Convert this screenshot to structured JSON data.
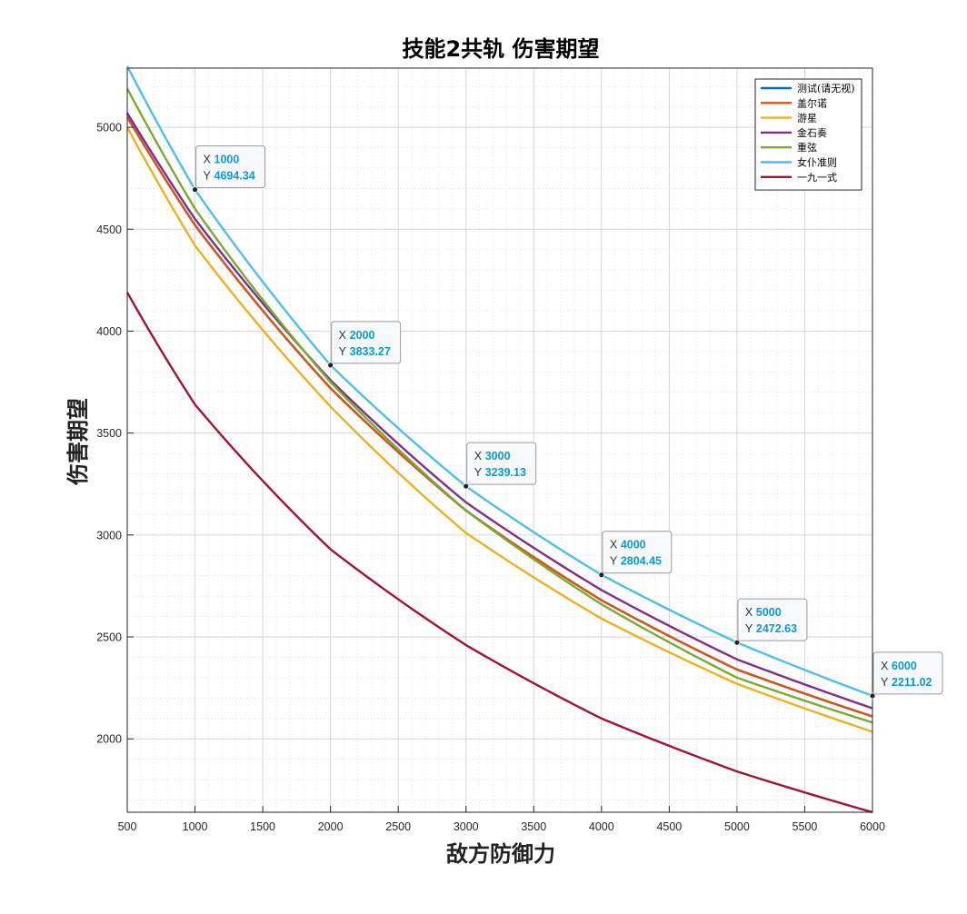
{
  "chart_data": {
    "type": "line",
    "title": "技能2共轨 伤害期望",
    "xlabel": "敌方防御力",
    "ylabel": "伤害期望",
    "xlim": [
      500,
      6000
    ],
    "ylim": [
      1640,
      5290
    ],
    "xticks": [
      500,
      1000,
      1500,
      2000,
      2500,
      3000,
      3500,
      4000,
      4500,
      5000,
      5500,
      6000
    ],
    "yticks": [
      2000,
      2500,
      3000,
      3500,
      4000,
      4500,
      5000
    ],
    "grid": true,
    "minor_grid": true,
    "legend_position": "top-right",
    "x": [
      500,
      1000,
      2000,
      3000,
      4000,
      5000,
      6000
    ],
    "series": [
      {
        "name": "测试(请无视)",
        "color": "#0072BD",
        "values": [
          5050,
          4520,
          3720,
          3120,
          2680,
          2340,
          2110
        ]
      },
      {
        "name": "盖尔诺",
        "color": "#D95319",
        "values": [
          5050,
          4520,
          3720,
          3120,
          2680,
          2340,
          2110
        ]
      },
      {
        "name": "游星",
        "color": "#EDB120",
        "values": [
          5000,
          4420,
          3630,
          3010,
          2590,
          2270,
          2035
        ]
      },
      {
        "name": "金石奏",
        "color": "#7E2F8E",
        "values": [
          5070,
          4550,
          3760,
          3160,
          2730,
          2390,
          2150
        ]
      },
      {
        "name": "重弦",
        "color": "#77AC30",
        "values": [
          5190,
          4600,
          3750,
          3120,
          2660,
          2300,
          2080
        ]
      },
      {
        "name": "女仆准则",
        "color": "#4DBEEE",
        "values": [
          5300,
          4694.34,
          3833.27,
          3239.13,
          2804.45,
          2472.63,
          2211.02
        ]
      },
      {
        "name": "一九一式",
        "color": "#A2142F",
        "values": [
          4190,
          3640,
          2930,
          2460,
          2100,
          1840,
          1640
        ]
      }
    ],
    "datatips": [
      {
        "x_label": "X",
        "y_label": "Y",
        "x": "1000",
        "y": "4694.34"
      },
      {
        "x_label": "X",
        "y_label": "Y",
        "x": "2000",
        "y": "3833.27"
      },
      {
        "x_label": "X",
        "y_label": "Y",
        "x": "3000",
        "y": "3239.13"
      },
      {
        "x_label": "X",
        "y_label": "Y",
        "x": "4000",
        "y": "2804.45"
      },
      {
        "x_label": "X",
        "y_label": "Y",
        "x": "5000",
        "y": "2472.63"
      },
      {
        "x_label": "X",
        "y_label": "Y",
        "x": "6000",
        "y": "2211.02"
      }
    ]
  }
}
